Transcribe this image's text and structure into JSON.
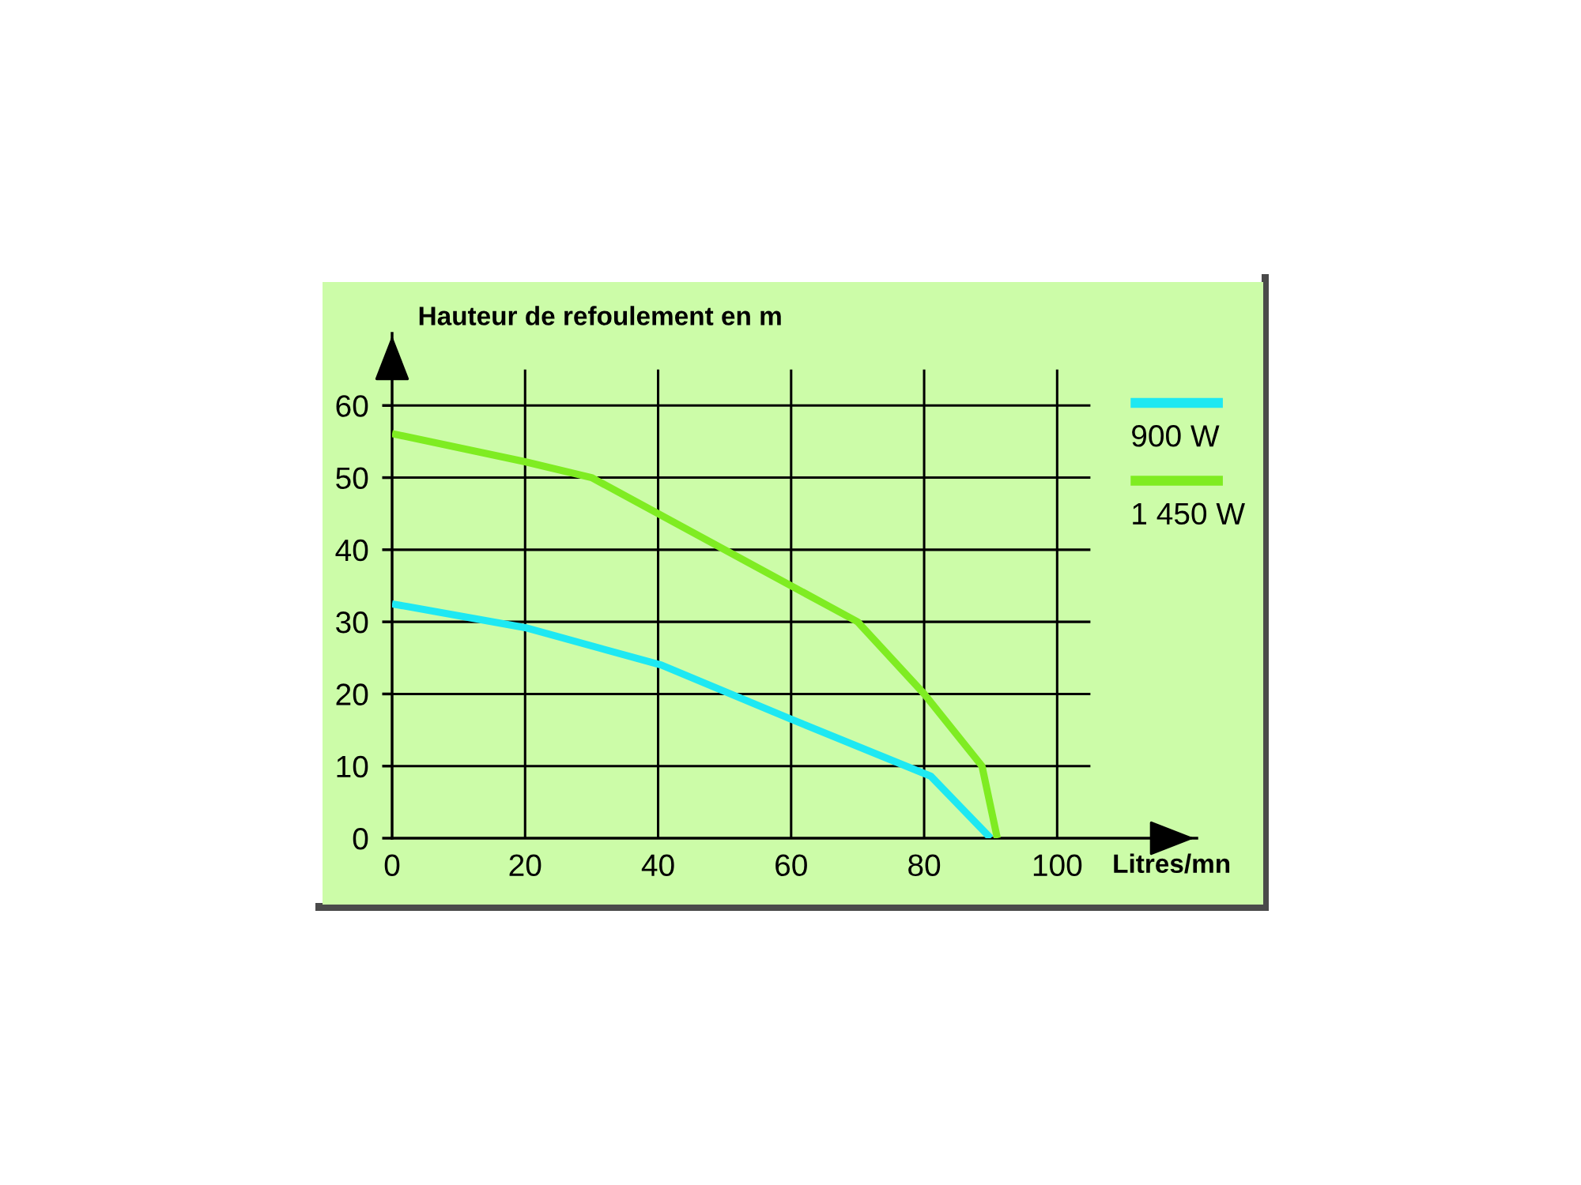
{
  "chart_data": {
    "type": "line",
    "ylabel": "Hauteur de refoulement en m",
    "xlabel": "Litres/mn",
    "xlim": [
      0,
      121
    ],
    "ylim": [
      0,
      70
    ],
    "xticks": [
      0,
      20,
      40,
      60,
      80,
      100
    ],
    "yticks": [
      0,
      10,
      20,
      30,
      40,
      50,
      60
    ],
    "grid": true,
    "legend": "top right",
    "series": [
      {
        "name": "900 W",
        "color": "#1ee8f2",
        "x": [
          0,
          20,
          40.5,
          60,
          81,
          90
        ],
        "values": [
          32.5,
          29.2,
          24,
          16.5,
          8.6,
          0
        ]
      },
      {
        "name": "1 450 W",
        "color": "#7fec22",
        "x": [
          0,
          20,
          30,
          70,
          80,
          88.7,
          91
        ],
        "values": [
          56.1,
          52.2,
          50,
          30,
          20,
          10,
          0
        ]
      }
    ]
  }
}
